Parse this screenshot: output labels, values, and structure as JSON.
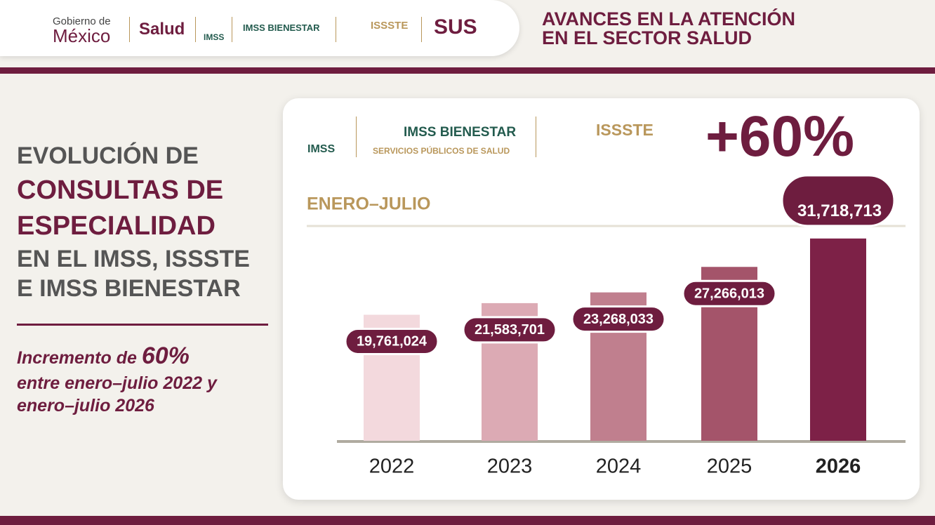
{
  "header": {
    "gobierno_small": "Gobierno de",
    "gobierno_large": "México",
    "salud": "Salud",
    "imss": "IMSS",
    "imss_bienestar": "IMSS BIENESTAR",
    "issste": "ISSSTE",
    "sus": "SUS",
    "title_lines": [
      "AVANCES EN LA ATENCIÓN",
      "EN EL SECTOR SALUD"
    ]
  },
  "left": {
    "title_lines": [
      "EVOLUCIÓN DE",
      "CONSULTAS DE",
      "ESPECIALIDAD",
      "EN EL IMSS, ISSSTE",
      "E IMSS BIENESTAR"
    ],
    "note_prefix": "Incremento de",
    "note_highlight": "60%",
    "note_lines": [
      "entre enero–julio 2022 y",
      "enero–julio 2026"
    ]
  },
  "card": {
    "logos": {
      "imss": "IMSS",
      "imss_bienestar": "IMSS BIENESTAR",
      "imss_bienestar_sub": "SERVICIOS PÚBLICOS DE SALUD",
      "issste": "ISSSTE"
    },
    "headline": "+60%"
  },
  "chart_data": {
    "type": "bar",
    "subtitle": "ENERO–JULIO",
    "categories": [
      "2022",
      "2023",
      "2024",
      "2025",
      "2026"
    ],
    "values": [
      19761024,
      21583701,
      23268033,
      27266013,
      31718713
    ],
    "value_labels": [
      "19,761,024",
      "21,583,701",
      "23,268,033",
      "27,266,013",
      "31,718,713"
    ],
    "colors": [
      "#f3d9dd",
      "#dcaab4",
      "#c07f8e",
      "#a4546a",
      "#7d2147"
    ],
    "ylim": [
      0,
      35000000
    ]
  }
}
